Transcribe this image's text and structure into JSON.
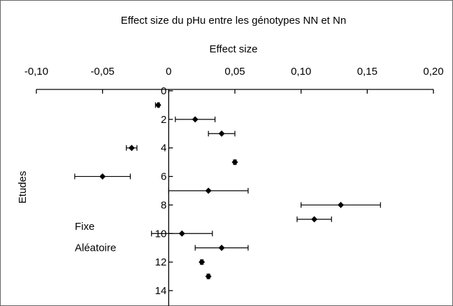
{
  "chart_data": {
    "type": "scatter",
    "title": "Effect size du pHu entre les génotypes NN et Nn",
    "xlabel": "Effect size",
    "ylabel": "Etudes",
    "xlim": [
      -0.1,
      0.2
    ],
    "ylim": [
      0,
      14
    ],
    "x_ticks": [
      -0.1,
      -0.05,
      0,
      0.05,
      0.1,
      0.15,
      0.2
    ],
    "x_tick_labels": [
      "-0,10",
      "-0,05",
      "0",
      "0,05",
      "0,10",
      "0,15",
      "0,20"
    ],
    "y_ticks": [
      0,
      2,
      4,
      6,
      8,
      10,
      12,
      14
    ],
    "y_tick_labels": [
      "0",
      "2",
      "4",
      "6",
      "8",
      "10",
      "12",
      "14"
    ],
    "y_reversed": true,
    "x_axis_position": "top",
    "grid": false,
    "series": [
      {
        "points": [
          {
            "study": 1,
            "x": -0.008,
            "lo": -0.01,
            "hi": -0.007
          },
          {
            "study": 2,
            "x": 0.02,
            "lo": 0.005,
            "hi": 0.035
          },
          {
            "study": 3,
            "x": 0.04,
            "lo": 0.03,
            "hi": 0.05
          },
          {
            "study": 4,
            "x": -0.028,
            "lo": -0.032,
            "hi": -0.024
          },
          {
            "study": 5,
            "x": 0.05,
            "lo": 0.049,
            "hi": 0.051
          },
          {
            "study": 6,
            "x": -0.05,
            "lo": -0.071,
            "hi": -0.029
          },
          {
            "study": 7,
            "x": 0.03,
            "lo": 0.0,
            "hi": 0.06
          },
          {
            "study": 8,
            "x": 0.13,
            "lo": 0.1,
            "hi": 0.16
          },
          {
            "study": 9,
            "x": 0.11,
            "lo": 0.097,
            "hi": 0.123
          },
          {
            "study": 10,
            "x": 0.01,
            "lo": -0.013,
            "hi": 0.033
          },
          {
            "study": 11,
            "x": 0.04,
            "lo": 0.02,
            "hi": 0.06
          },
          {
            "study": 12,
            "x": 0.025,
            "lo": 0.024,
            "hi": 0.026
          },
          {
            "study": 13,
            "x": 0.03,
            "lo": 0.029,
            "hi": 0.031
          }
        ]
      }
    ],
    "annotations": [
      {
        "text": "Fixe",
        "study": 9.5
      },
      {
        "text": "Aléatoire",
        "study": 11
      }
    ],
    "colors": {
      "marker": "#000000",
      "axis": "#000000",
      "border": "#666666"
    }
  }
}
